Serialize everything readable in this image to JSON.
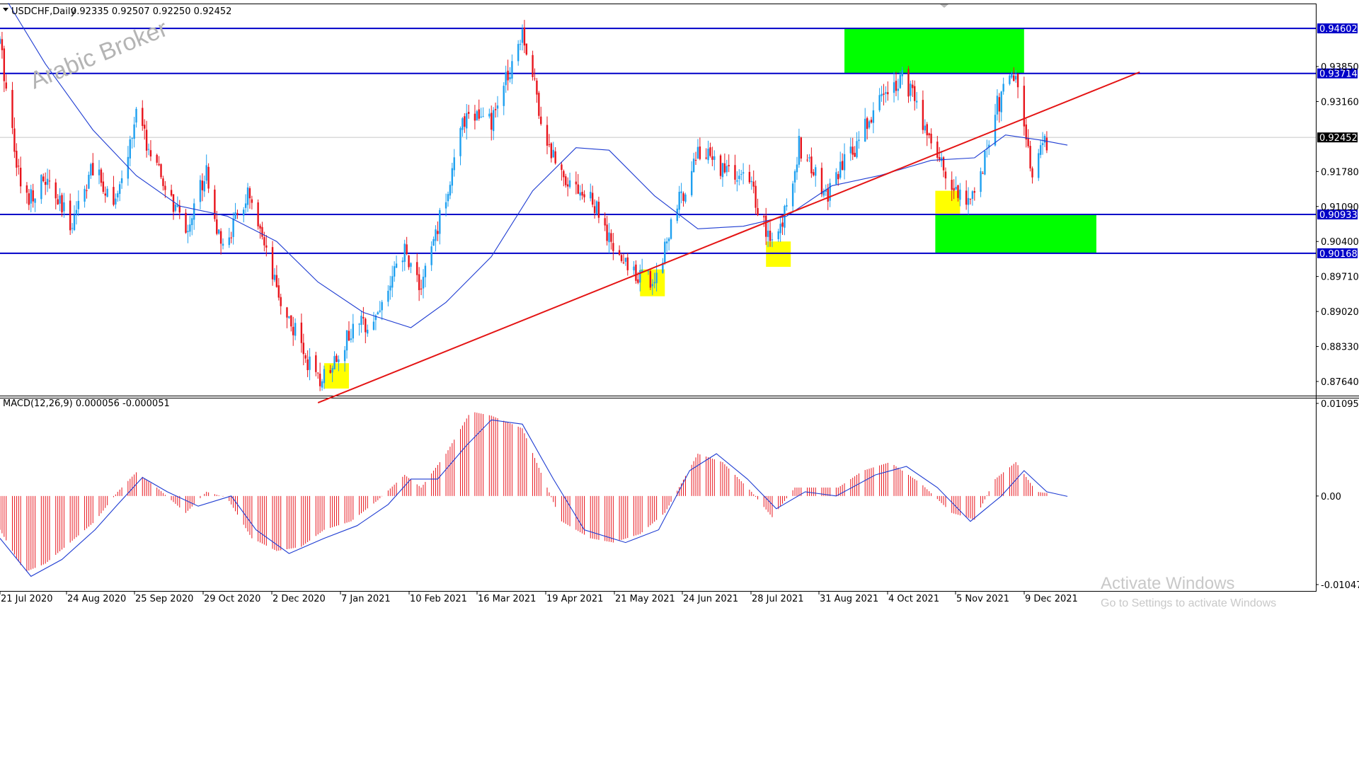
{
  "chart_data": [
    {
      "type": "candlestick",
      "title": "USDCHF,Daily",
      "ohlc_header": "0.92335 0.92507 0.92250 0.92452",
      "watermark": "Arabic Broker",
      "ylim": [
        0.8725,
        0.9515
      ],
      "x_tick_labels": [
        "21 Jul 2020",
        "24 Aug 2020",
        "25 Sep 2020",
        "29 Oct 2020",
        "2 Dec 2020",
        "7 Jan 2021",
        "10 Feb 2021",
        "16 Mar 2021",
        "19 Apr 2021",
        "21 May 2021",
        "24 Jun 2021",
        "28 Jul 2021",
        "31 Aug 2021",
        "4 Oct 2021",
        "5 Nov 2021",
        "9 Dec 2021"
      ],
      "y_tick_labels": [
        "0.93850",
        "0.93160",
        "0.91780",
        "0.91090",
        "0.90400",
        "0.89710",
        "0.89020",
        "0.88330",
        "0.87640"
      ],
      "y_ticks": [
        0.9385,
        0.9316,
        0.9178,
        0.9109,
        0.904,
        0.8971,
        0.8902,
        0.8833,
        0.8764
      ],
      "horizontal_levels": [
        {
          "value": 0.94602,
          "label": "0.94602",
          "color": "#0000c8"
        },
        {
          "value": 0.93714,
          "label": "0.93714",
          "color": "#0000c8"
        },
        {
          "value": 0.90933,
          "label": "0.90933",
          "color": "#0000c8"
        },
        {
          "value": 0.90168,
          "label": "0.90168",
          "color": "#0000c8"
        }
      ],
      "current_price": {
        "value": 0.92452,
        "label": "0.92452"
      },
      "trendline": {
        "from": {
          "date": "2020-12-22",
          "price": 0.8722
        },
        "to": {
          "date": "2022-01-24",
          "price": 0.9374
        },
        "color": "#e41414"
      },
      "supply_demand_zones": [
        {
          "from": "2021-09-03",
          "to": "2021-11-29",
          "top": 0.94602,
          "bottom": 0.93714,
          "color": "#00ff00"
        },
        {
          "from": "2021-10-17",
          "to": "2022-01-03",
          "top": 0.90933,
          "bottom": 0.90168,
          "color": "#00ff00"
        }
      ],
      "highlight_boxes": [
        {
          "from": "2020-12-25",
          "to": "2021-01-06",
          "top": 0.88,
          "bottom": 0.875,
          "color": "#ffff00"
        },
        {
          "from": "2021-05-27",
          "to": "2021-06-08",
          "top": 0.8985,
          "bottom": 0.8932,
          "color": "#ffff00"
        },
        {
          "from": "2021-07-27",
          "to": "2021-08-08",
          "top": 0.904,
          "bottom": 0.899,
          "color": "#ffff00"
        },
        {
          "from": "2021-10-17",
          "to": "2021-10-29",
          "top": 0.914,
          "bottom": 0.9095,
          "color": "#ffff00"
        }
      ],
      "close_path": [
        [
          "2020-07-21",
          0.943
        ],
        [
          "2020-08-01",
          0.912
        ],
        [
          "2020-08-12",
          0.916
        ],
        [
          "2020-08-24",
          0.9075
        ],
        [
          "2020-09-03",
          0.918
        ],
        [
          "2020-09-16",
          0.912
        ],
        [
          "2020-09-25",
          0.929
        ],
        [
          "2020-10-06",
          0.917
        ],
        [
          "2020-10-19",
          0.906
        ],
        [
          "2020-10-29",
          0.9185
        ],
        [
          "2020-11-05",
          0.902
        ],
        [
          "2020-11-18",
          0.913
        ],
        [
          "2020-12-02",
          0.894
        ],
        [
          "2020-12-11",
          0.886
        ],
        [
          "2020-12-22",
          0.876
        ],
        [
          "2021-01-07",
          0.886
        ],
        [
          "2021-01-20",
          0.89
        ],
        [
          "2021-02-02",
          0.902
        ],
        [
          "2021-02-10",
          0.895
        ],
        [
          "2021-02-22",
          0.913
        ],
        [
          "2021-03-04",
          0.93
        ],
        [
          "2021-03-16",
          0.927
        ],
        [
          "2021-03-31",
          0.946
        ],
        [
          "2021-04-12",
          0.923
        ],
        [
          "2021-04-19",
          0.918
        ],
        [
          "2021-05-05",
          0.911
        ],
        [
          "2021-05-14",
          0.902
        ],
        [
          "2021-05-21",
          0.899
        ],
        [
          "2021-06-03",
          0.896
        ],
        [
          "2021-06-10",
          0.906
        ],
        [
          "2021-06-24",
          0.922
        ],
        [
          "2021-07-08",
          0.918
        ],
        [
          "2021-07-20",
          0.915
        ],
        [
          "2021-07-28",
          0.9045
        ],
        [
          "2021-08-03",
          0.906
        ],
        [
          "2021-08-12",
          0.923
        ],
        [
          "2021-08-25",
          0.913
        ],
        [
          "2021-09-07",
          0.922
        ],
        [
          "2021-09-20",
          0.932
        ],
        [
          "2021-10-01",
          0.937
        ],
        [
          "2021-10-15",
          0.924
        ],
        [
          "2021-10-25",
          0.915
        ],
        [
          "2021-11-05",
          0.912
        ],
        [
          "2021-11-15",
          0.93
        ],
        [
          "2021-11-25",
          0.9375
        ],
        [
          "2021-12-02",
          0.918
        ],
        [
          "2021-12-09",
          0.923
        ],
        [
          "2021-12-20",
          0.9245
        ]
      ],
      "moving_average": [
        [
          "2020-07-25",
          0.951
        ],
        [
          "2020-08-12",
          0.939
        ],
        [
          "2020-09-04",
          0.926
        ],
        [
          "2020-09-25",
          0.917
        ],
        [
          "2020-10-16",
          0.911
        ],
        [
          "2020-11-08",
          0.909
        ],
        [
          "2020-12-02",
          0.904
        ],
        [
          "2020-12-22",
          0.896
        ],
        [
          "2021-01-13",
          0.89
        ],
        [
          "2021-02-05",
          0.887
        ],
        [
          "2021-02-22",
          0.892
        ],
        [
          "2021-03-16",
          0.901
        ],
        [
          "2021-04-05",
          0.914
        ],
        [
          "2021-04-26",
          0.9225
        ],
        [
          "2021-05-12",
          0.922
        ],
        [
          "2021-06-03",
          0.913
        ],
        [
          "2021-06-24",
          0.9065
        ],
        [
          "2021-07-16",
          0.907
        ],
        [
          "2021-08-06",
          0.909
        ],
        [
          "2021-08-28",
          0.915
        ],
        [
          "2021-09-20",
          0.917
        ],
        [
          "2021-10-15",
          0.92
        ],
        [
          "2021-11-05",
          0.9205
        ],
        [
          "2021-11-20",
          0.925
        ],
        [
          "2021-12-07",
          0.924
        ],
        [
          "2021-12-20",
          0.923
        ]
      ]
    },
    {
      "type": "bar",
      "title": "MACD(12,26,9) 0.000056 -0.000051",
      "ylim": [
        -0.010475,
        0.010951
      ],
      "y_tick_labels": [
        "0.010951",
        "0.00",
        "-0.010475"
      ],
      "y_ticks": [
        0.010951,
        0.0,
        -0.010475
      ],
      "histogram_path": [
        [
          "2020-07-21",
          -0.004
        ],
        [
          "2020-08-02",
          -0.009
        ],
        [
          "2020-08-12",
          -0.008
        ],
        [
          "2020-08-24",
          -0.0055
        ],
        [
          "2020-09-05",
          -0.003
        ],
        [
          "2020-09-16",
          0.0005
        ],
        [
          "2020-09-25",
          0.0028
        ],
        [
          "2020-10-05",
          0.001
        ],
        [
          "2020-10-19",
          -0.002
        ],
        [
          "2020-10-29",
          0.0005
        ],
        [
          "2020-11-08",
          -0.0002
        ],
        [
          "2020-11-20",
          -0.005
        ],
        [
          "2020-12-02",
          -0.0065
        ],
        [
          "2020-12-14",
          -0.006
        ],
        [
          "2020-12-25",
          -0.004
        ],
        [
          "2021-01-07",
          -0.003
        ],
        [
          "2021-01-20",
          -0.0005
        ],
        [
          "2021-02-02",
          0.0025
        ],
        [
          "2021-02-10",
          0.001
        ],
        [
          "2021-02-22",
          0.005
        ],
        [
          "2021-03-06",
          0.01
        ],
        [
          "2021-03-16",
          0.0095
        ],
        [
          "2021-03-31",
          0.008
        ],
        [
          "2021-04-12",
          0.001
        ],
        [
          "2021-04-19",
          -0.003
        ],
        [
          "2021-05-03",
          -0.005
        ],
        [
          "2021-05-14",
          -0.0055
        ],
        [
          "2021-05-27",
          -0.0045
        ],
        [
          "2021-06-08",
          -0.002
        ],
        [
          "2021-06-24",
          0.005
        ],
        [
          "2021-07-06",
          0.004
        ],
        [
          "2021-07-20",
          0.0005
        ],
        [
          "2021-07-30",
          -0.0025
        ],
        [
          "2021-08-10",
          0.001
        ],
        [
          "2021-08-31",
          0.001
        ],
        [
          "2021-09-12",
          0.003
        ],
        [
          "2021-09-25",
          0.004
        ],
        [
          "2021-10-10",
          0.0015
        ],
        [
          "2021-10-25",
          -0.002
        ],
        [
          "2021-11-05",
          -0.0028
        ],
        [
          "2021-11-15",
          0.002
        ],
        [
          "2021-11-25",
          0.004
        ],
        [
          "2021-12-05",
          0.0005
        ],
        [
          "2021-12-20",
          6e-05
        ]
      ],
      "signal_path": [
        [
          "2020-07-21",
          -0.005
        ],
        [
          "2020-08-05",
          -0.0095
        ],
        [
          "2020-08-20",
          -0.0075
        ],
        [
          "2020-09-05",
          -0.004
        ],
        [
          "2020-09-16",
          -0.001
        ],
        [
          "2020-09-28",
          0.0022
        ],
        [
          "2020-10-10",
          0.0005
        ],
        [
          "2020-10-25",
          -0.0012
        ],
        [
          "2020-11-10",
          0.0
        ],
        [
          "2020-11-22",
          -0.004
        ],
        [
          "2020-12-08",
          -0.0068
        ],
        [
          "2020-12-25",
          -0.005
        ],
        [
          "2021-01-10",
          -0.0035
        ],
        [
          "2021-01-25",
          -0.001
        ],
        [
          "2021-02-05",
          0.002
        ],
        [
          "2021-02-18",
          0.002
        ],
        [
          "2021-03-04",
          0.006
        ],
        [
          "2021-03-16",
          0.009
        ],
        [
          "2021-03-31",
          0.0085
        ],
        [
          "2021-04-15",
          0.002
        ],
        [
          "2021-04-30",
          -0.004
        ],
        [
          "2021-05-20",
          -0.0055
        ],
        [
          "2021-06-05",
          -0.004
        ],
        [
          "2021-06-20",
          0.003
        ],
        [
          "2021-07-03",
          0.005
        ],
        [
          "2021-07-18",
          0.002
        ],
        [
          "2021-08-01",
          -0.0015
        ],
        [
          "2021-08-15",
          0.0005
        ],
        [
          "2021-08-30",
          0.0
        ],
        [
          "2021-09-18",
          0.0025
        ],
        [
          "2021-10-03",
          0.0035
        ],
        [
          "2021-10-18",
          0.001
        ],
        [
          "2021-11-03",
          -0.003
        ],
        [
          "2021-11-18",
          0.0
        ],
        [
          "2021-11-29",
          0.003
        ],
        [
          "2021-12-10",
          0.0005
        ],
        [
          "2021-12-20",
          -5e-05
        ]
      ]
    }
  ],
  "os_overlay": {
    "title": "Activate Windows",
    "subtitle": "Go to Settings to activate Windows"
  }
}
